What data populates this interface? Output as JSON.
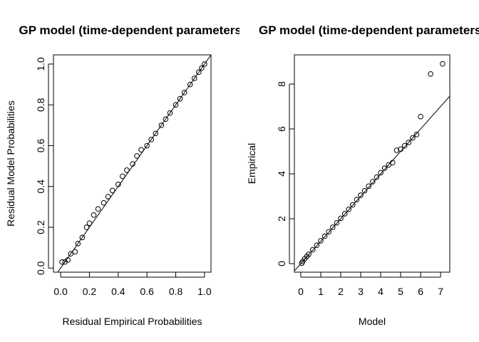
{
  "chart_data": [
    {
      "type": "scatter",
      "title": "GP model (time-dependent parameters)",
      "x_label": "Residual Empirical Probabilities",
      "y_label": "Residual Model Probabilities",
      "x": [
        0.01,
        0.03,
        0.05,
        0.07,
        0.1,
        0.12,
        0.15,
        0.18,
        0.2,
        0.23,
        0.26,
        0.3,
        0.33,
        0.36,
        0.4,
        0.43,
        0.46,
        0.5,
        0.53,
        0.56,
        0.6,
        0.63,
        0.66,
        0.7,
        0.73,
        0.76,
        0.8,
        0.83,
        0.86,
        0.9,
        0.93,
        0.96,
        0.98,
        1.0
      ],
      "values": [
        0.03,
        0.03,
        0.04,
        0.07,
        0.08,
        0.12,
        0.15,
        0.2,
        0.22,
        0.26,
        0.29,
        0.32,
        0.35,
        0.38,
        0.41,
        0.45,
        0.48,
        0.51,
        0.55,
        0.58,
        0.6,
        0.63,
        0.66,
        0.7,
        0.73,
        0.76,
        0.8,
        0.83,
        0.86,
        0.9,
        0.93,
        0.96,
        0.98,
        1.0
      ],
      "color": "#000000",
      "diagonal": true,
      "xlim": [
        -0.05,
        1.045
      ],
      "ylim": [
        -0.02,
        1.045
      ],
      "xticks": [
        {
          "value": 0,
          "label": "0.0"
        },
        0.2,
        0.4,
        0.6,
        0.8,
        {
          "value": 1,
          "label": "1.0"
        }
      ],
      "yticks": [
        {
          "value": 0,
          "label": "0.0"
        },
        0.2,
        0.4,
        0.6,
        0.8,
        {
          "value": 1,
          "label": "1.0"
        }
      ]
    },
    {
      "type": "scatter",
      "title": "GP model (time-dependent parameters)",
      "x_label": "Model",
      "y_label": "Empirical",
      "x": [
        0.05,
        0.1,
        0.2,
        0.3,
        0.4,
        0.6,
        0.8,
        1.0,
        1.2,
        1.4,
        1.6,
        1.8,
        2.0,
        2.2,
        2.4,
        2.6,
        2.8,
        3.0,
        3.2,
        3.4,
        3.6,
        3.8,
        4.0,
        4.2,
        4.4,
        4.6,
        4.8,
        5.0,
        5.2,
        5.4,
        5.6,
        5.8,
        6.0,
        6.5,
        7.1
      ],
      "values": [
        0.02,
        0.1,
        0.22,
        0.32,
        0.42,
        0.62,
        0.82,
        1.02,
        1.22,
        1.42,
        1.62,
        1.82,
        2.02,
        2.22,
        2.42,
        2.62,
        2.85,
        3.05,
        3.25,
        3.45,
        3.65,
        3.85,
        4.05,
        4.25,
        4.4,
        4.5,
        5.05,
        5.1,
        5.25,
        5.4,
        5.6,
        5.75,
        6.55,
        8.45,
        8.9
      ],
      "color": "#000000",
      "diagonal": true,
      "xlim": [
        -0.32,
        7.46
      ],
      "ylim": [
        -0.38,
        9.3
      ],
      "xticks": [
        0,
        1,
        2,
        3,
        4,
        5,
        6,
        7
      ],
      "yticks": [
        0,
        2,
        4,
        6,
        8
      ]
    }
  ]
}
